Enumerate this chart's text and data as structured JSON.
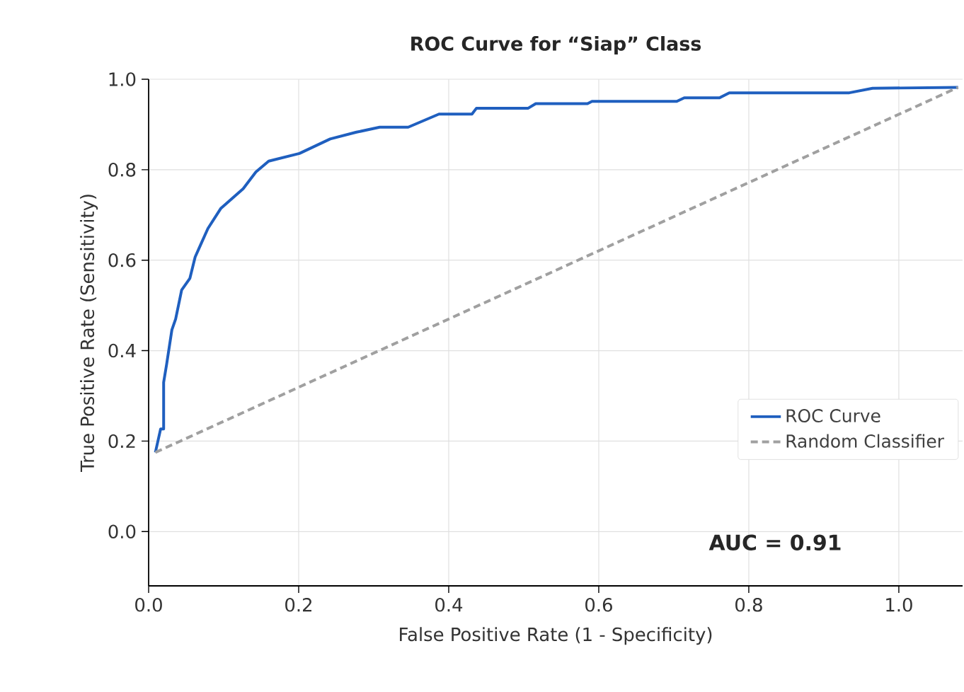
{
  "chart_data": {
    "type": "line",
    "title": "ROC Curve for “Siap” Class",
    "xlabel": "False Positive Rate (1 - Specificity)",
    "ylabel": "True Positive Rate (Sensitivity)",
    "xlim": [
      0,
      1.085
    ],
    "ylim": [
      -0.12,
      1.0
    ],
    "xticks": [
      {
        "value": 0,
        "label": "0.0"
      },
      {
        "value": 0.2,
        "label": "0.2"
      },
      {
        "value": 0.4,
        "label": "0.4"
      },
      {
        "value": 0.6,
        "label": "0.6"
      },
      {
        "value": 0.8,
        "label": "0.8"
      },
      {
        "value": 1.0,
        "label": "1.0"
      }
    ],
    "yticks": [
      {
        "value": 0,
        "label": "0.0"
      },
      {
        "value": 0.2,
        "label": "0.2"
      },
      {
        "value": 0.4,
        "label": "0.4"
      },
      {
        "value": 0.6,
        "label": "0.6"
      },
      {
        "value": 0.8,
        "label": "0.8"
      },
      {
        "value": 1.0,
        "label": "1.0"
      }
    ],
    "grid": true,
    "legend": "bottom right",
    "marker": "none",
    "annotations": [
      "AUC = 0.91"
    ],
    "series": [
      {
        "name": "ROC Curve",
        "color": "#1f5fbf",
        "line_style": "solid",
        "x": [
          0.009,
          0.016,
          0.02,
          0.02,
          0.024,
          0.031,
          0.036,
          0.044,
          0.055,
          0.062,
          0.069,
          0.079,
          0.096,
          0.126,
          0.143,
          0.16,
          0.201,
          0.242,
          0.277,
          0.308,
          0.346,
          0.387,
          0.431,
          0.437,
          0.506,
          0.516,
          0.585,
          0.591,
          0.704,
          0.714,
          0.761,
          0.774,
          0.934,
          0.965,
          1.079
        ],
        "values": [
          0.175,
          0.227,
          0.227,
          0.33,
          0.37,
          0.446,
          0.47,
          0.534,
          0.56,
          0.607,
          0.633,
          0.67,
          0.714,
          0.758,
          0.795,
          0.819,
          0.836,
          0.868,
          0.883,
          0.894,
          0.894,
          0.923,
          0.923,
          0.936,
          0.936,
          0.946,
          0.946,
          0.951,
          0.951,
          0.959,
          0.959,
          0.97,
          0.97,
          0.98,
          0.982
        ]
      },
      {
        "name": "Random Classifier",
        "color": "#a0a0a0",
        "line_style": "dashed",
        "x": [
          0.009,
          1.079
        ],
        "values": [
          0.175,
          0.982
        ]
      }
    ]
  }
}
